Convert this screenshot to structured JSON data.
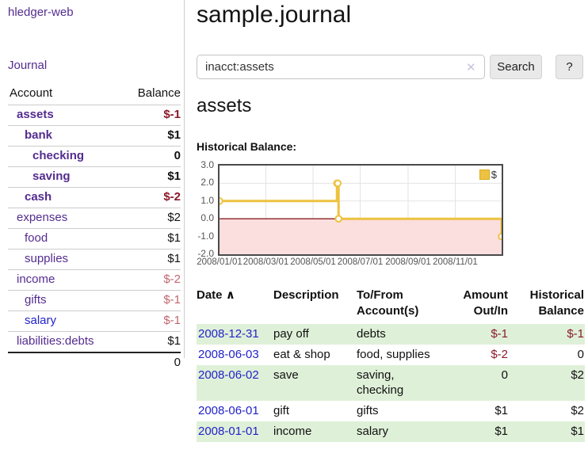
{
  "app": {
    "brand": "hledger-web"
  },
  "sidebar": {
    "nav_journal": "Journal",
    "accounts": {
      "headers": {
        "account": "Account",
        "balance": "Balance"
      },
      "rows": [
        {
          "name": "assets",
          "balance": "$-1"
        },
        {
          "name": "bank",
          "balance": "$1"
        },
        {
          "name": "checking",
          "balance": "0"
        },
        {
          "name": "saving",
          "balance": "$1"
        },
        {
          "name": "cash",
          "balance": "$-2"
        },
        {
          "name": "expenses",
          "balance": "$2"
        },
        {
          "name": "food",
          "balance": "$1"
        },
        {
          "name": "supplies",
          "balance": "$1"
        },
        {
          "name": "income",
          "balance": "$-2"
        },
        {
          "name": "gifts",
          "balance": "$-1"
        },
        {
          "name": "salary",
          "balance": "$-1"
        },
        {
          "name": "liabilities:debts",
          "balance": "$1"
        }
      ],
      "total": "0"
    }
  },
  "header": {
    "title": "sample.journal"
  },
  "search": {
    "value": "inacct:assets",
    "placeholder": "",
    "clear_icon": "✕",
    "button_label": "Search",
    "help_label": "?"
  },
  "account_page": {
    "title": "assets",
    "chart_label": "Historical Balance:"
  },
  "chart_data": {
    "type": "line",
    "title": "Historical Balance",
    "step": true,
    "series": [
      {
        "name": "$",
        "color": "#edc240",
        "points": [
          {
            "date": "2008-01-01",
            "value": 1
          },
          {
            "date": "2008-06-01",
            "value": 2
          },
          {
            "date": "2008-06-02",
            "value": 2
          },
          {
            "date": "2008-06-03",
            "value": 0
          },
          {
            "date": "2008-12-31",
            "value": -1
          }
        ]
      }
    ],
    "x_range": [
      "2008-01-01",
      "2008-12-31"
    ],
    "x_ticks": [
      {
        "label": "2008/01/01",
        "date": "2008-01-01"
      },
      {
        "label": "2008/03/01",
        "date": "2008-03-01"
      },
      {
        "label": "2008/05/01",
        "date": "2008-05-01"
      },
      {
        "label": "2008/07/01",
        "date": "2008-07-01"
      },
      {
        "label": "2008/09/01",
        "date": "2008-09-01"
      },
      {
        "label": "2008/11/01",
        "date": "2008-11-01"
      }
    ],
    "y_ticks": [
      3.0,
      2.0,
      1.0,
      0.0,
      -1.0,
      -2.0
    ],
    "ylim": [
      -2,
      3
    ],
    "grid": true,
    "legend_position": "top-right",
    "negative_region_color": "#fbdede",
    "zero_line_color": "#8b2020",
    "grid_color": "#e3e3e3"
  },
  "register": {
    "sort_icon": "∧",
    "headers": {
      "date": "Date",
      "description": "Description",
      "accounts": "To/From Account(s)",
      "amount": "Amount Out/In",
      "balance": "Historical Balance"
    },
    "rows": [
      {
        "date": "2008-12-31",
        "description": "pay off",
        "accounts": "debts",
        "amount": "$-1",
        "balance": "$-1"
      },
      {
        "date": "2008-06-03",
        "description": "eat & shop",
        "accounts": "food, supplies",
        "amount": "$-2",
        "balance": "0"
      },
      {
        "date": "2008-06-02",
        "description": "save",
        "accounts": "saving, checking",
        "amount": "0",
        "balance": "$2"
      },
      {
        "date": "2008-06-01",
        "description": "gift",
        "accounts": "gifts",
        "amount": "$1",
        "balance": "$2"
      },
      {
        "date": "2008-01-01",
        "description": "income",
        "accounts": "salary",
        "amount": "$1",
        "balance": "$1"
      }
    ]
  }
}
